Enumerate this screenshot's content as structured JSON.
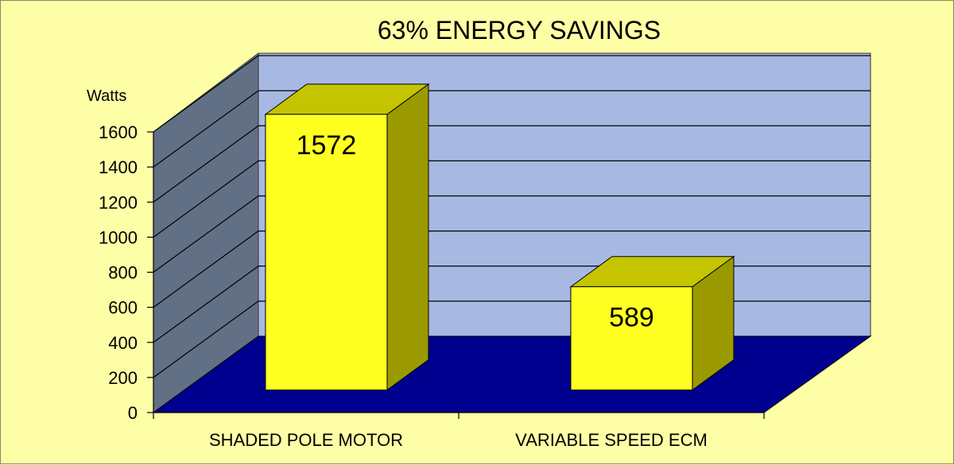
{
  "chart_data": {
    "type": "bar",
    "title": "63% ENERGY SAVINGS",
    "ylabel": "Watts",
    "xlabel": "",
    "categories": [
      "SHADED POLE MOTOR",
      "VARIABLE SPEED ECM"
    ],
    "values": [
      1572,
      589
    ],
    "data_labels": [
      "1572",
      "589"
    ],
    "ylim": [
      0,
      1600
    ],
    "yticks": [
      "0",
      "200",
      "400",
      "600",
      "800",
      "1000",
      "1200",
      "1400",
      "1600"
    ],
    "style": "3d",
    "grid": true,
    "colors": {
      "background": "#fefea6",
      "back_wall": "#a7b8e2",
      "side_wall": "#627086",
      "floor": "#00008e",
      "bar_front": "#ffff22",
      "bar_top": "#c4c400",
      "bar_side": "#9a9a00"
    }
  }
}
